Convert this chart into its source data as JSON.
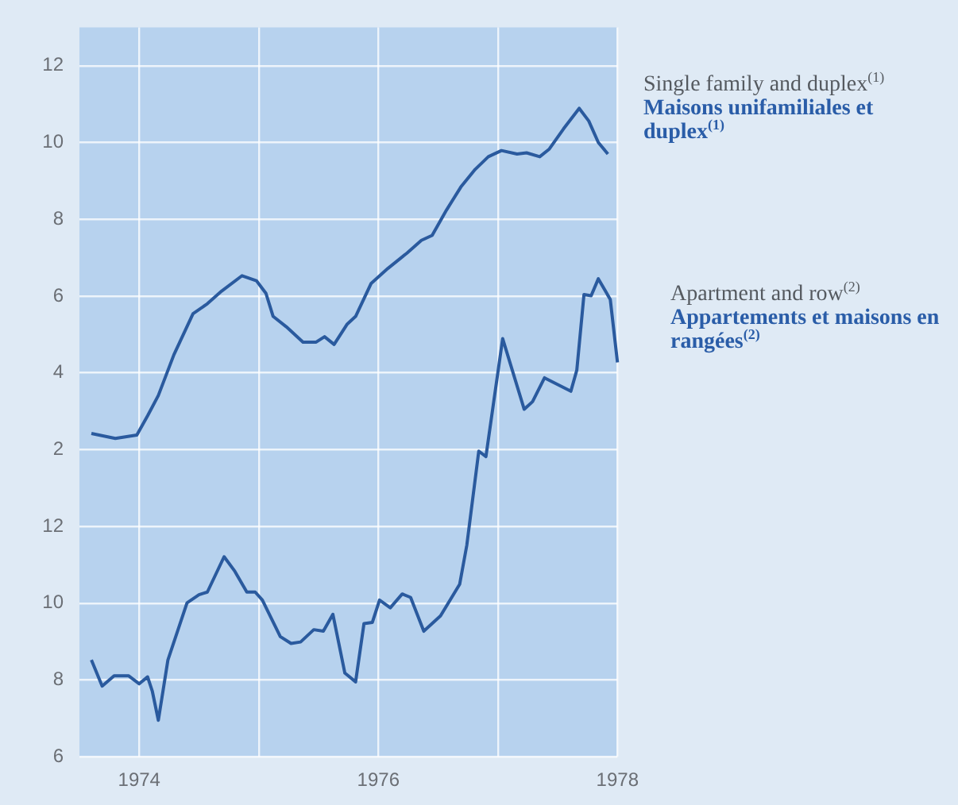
{
  "chart_data": {
    "type": "line",
    "grid": true,
    "xlim": [
      1973.5,
      1978
    ],
    "xticks": [
      1974,
      {
        "value": 1975,
        "label": null
      },
      1976,
      {
        "value": 1977,
        "label": null
      },
      1978
    ],
    "ylim": [
      6,
      25
    ],
    "yticks": [
      6,
      8,
      10,
      12
    ],
    "y2lim": [
      -6,
      13
    ],
    "y2ticks": [
      2,
      4,
      6,
      8,
      10,
      12
    ],
    "series": [
      {
        "name": "Single family and duplex$^{(1)}$\nMaisons unifamiliales et duplex$^{(1)}$",
        "color": "#2a5a9e",
        "axis": "y2",
        "x": [
          1973.6,
          1973.8,
          1973.98,
          1974.07,
          1974.16,
          1974.29,
          1974.45,
          1974.57,
          1974.69,
          1974.86,
          1974.98,
          1975.06,
          1975.12,
          1975.23,
          1975.37,
          1975.48,
          1975.55,
          1975.63,
          1975.74,
          1975.81,
          1975.94,
          1976.08,
          1976.24,
          1976.36,
          1976.45,
          1976.57,
          1976.69,
          1976.81,
          1976.92,
          1977.03,
          1977.16,
          1977.24,
          1977.35,
          1977.43,
          1977.55,
          1977.68,
          1977.76,
          1977.84,
          1977.92
        ],
        "values": [
          2.42,
          2.29,
          2.38,
          2.88,
          3.41,
          4.47,
          5.54,
          5.8,
          6.13,
          6.53,
          6.4,
          6.07,
          5.47,
          5.2,
          4.8,
          4.8,
          4.94,
          4.74,
          5.27,
          5.47,
          6.33,
          6.72,
          7.12,
          7.45,
          7.58,
          8.24,
          8.84,
          9.3,
          9.63,
          9.79,
          9.7,
          9.73,
          9.63,
          9.83,
          10.36,
          10.89,
          10.56,
          10.0,
          9.7
        ]
      },
      {
        "name": "Apartment and row$^{(2)}$\nAppartements et maisons en rangées$^{(2)}$",
        "color": "#2a5a9e",
        "axis": "y",
        "x": [
          1973.6,
          1973.69,
          1973.79,
          1973.91,
          1974.0,
          1974.07,
          1974.11,
          1974.16,
          1974.24,
          1974.4,
          1974.5,
          1974.57,
          1974.71,
          1974.8,
          1974.9,
          1974.97,
          1975.03,
          1975.18,
          1975.27,
          1975.35,
          1975.46,
          1975.54,
          1975.62,
          1975.72,
          1975.81,
          1975.88,
          1975.95,
          1976.01,
          1976.1,
          1976.2,
          1976.27,
          1976.38,
          1976.52,
          1976.68,
          1976.74,
          1976.84,
          1976.9,
          1977.04,
          1977.22,
          1977.29,
          1977.39,
          1977.61,
          1977.66,
          1977.72,
          1977.78,
          1977.84,
          1977.94,
          1978.0
        ],
        "values": [
          8.52,
          7.84,
          8.11,
          8.11,
          7.9,
          8.08,
          7.7,
          6.95,
          8.52,
          10.01,
          10.22,
          10.29,
          11.21,
          10.83,
          10.29,
          10.29,
          10.08,
          9.13,
          8.95,
          8.99,
          9.31,
          9.27,
          9.71,
          8.18,
          7.95,
          9.47,
          9.5,
          10.08,
          9.88,
          10.24,
          10.15,
          9.27,
          9.67,
          10.49,
          11.51,
          13.96,
          13.82,
          16.89,
          15.05,
          15.25,
          15.87,
          15.52,
          16.07,
          18.04,
          18.01,
          18.45,
          17.91,
          16.27
        ]
      }
    ]
  }
}
